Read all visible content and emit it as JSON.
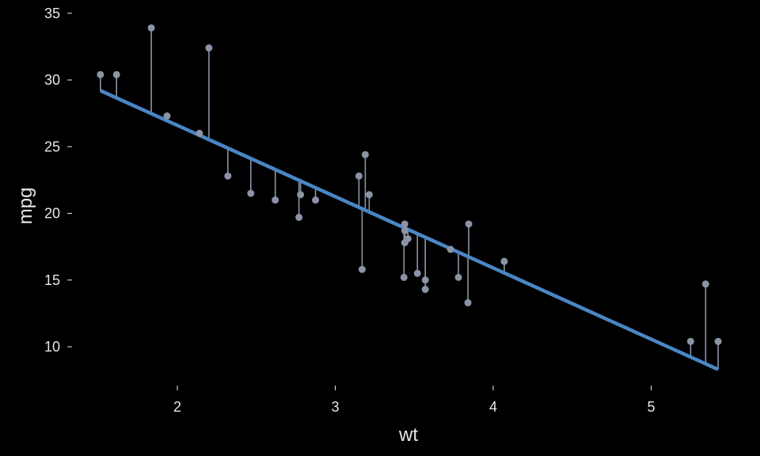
{
  "chart_data": {
    "type": "scatter",
    "title": "",
    "xlabel": "wt",
    "ylabel": "mpg",
    "xlim": [
      1.3,
      5.9
    ],
    "ylim": [
      6.8,
      35.3
    ],
    "x_ticks": [
      2,
      3,
      4,
      5
    ],
    "y_ticks": [
      10,
      15,
      20,
      25,
      30,
      35
    ],
    "grid": false,
    "colors": {
      "background": "#000000",
      "points": "#8a94a6",
      "residual_lines": "#8a94a6",
      "fit_line": "#4a86c5",
      "text": "#e6e6e6"
    },
    "regression": {
      "intercept": 37.285,
      "slope": -5.344,
      "x_range": [
        1.513,
        5.424
      ]
    },
    "points": [
      {
        "x": 2.62,
        "y": 21.0
      },
      {
        "x": 2.875,
        "y": 21.0
      },
      {
        "x": 2.32,
        "y": 22.8
      },
      {
        "x": 3.215,
        "y": 21.4
      },
      {
        "x": 3.44,
        "y": 18.7
      },
      {
        "x": 3.46,
        "y": 18.1
      },
      {
        "x": 3.57,
        "y": 14.3
      },
      {
        "x": 3.19,
        "y": 24.4
      },
      {
        "x": 3.15,
        "y": 22.8
      },
      {
        "x": 3.44,
        "y": 19.2
      },
      {
        "x": 3.44,
        "y": 17.8
      },
      {
        "x": 4.07,
        "y": 16.4
      },
      {
        "x": 3.73,
        "y": 17.3
      },
      {
        "x": 3.78,
        "y": 15.2
      },
      {
        "x": 5.25,
        "y": 10.4
      },
      {
        "x": 5.424,
        "y": 10.4
      },
      {
        "x": 5.345,
        "y": 14.7
      },
      {
        "x": 2.2,
        "y": 32.4
      },
      {
        "x": 1.615,
        "y": 30.4
      },
      {
        "x": 1.835,
        "y": 33.9
      },
      {
        "x": 2.465,
        "y": 21.5
      },
      {
        "x": 3.52,
        "y": 15.5
      },
      {
        "x": 3.435,
        "y": 15.2
      },
      {
        "x": 3.84,
        "y": 13.3
      },
      {
        "x": 3.845,
        "y": 19.2
      },
      {
        "x": 1.935,
        "y": 27.3
      },
      {
        "x": 2.14,
        "y": 26.0
      },
      {
        "x": 1.513,
        "y": 30.4
      },
      {
        "x": 3.17,
        "y": 15.8
      },
      {
        "x": 2.77,
        "y": 19.7
      },
      {
        "x": 3.57,
        "y": 15.0
      },
      {
        "x": 2.78,
        "y": 21.4
      }
    ]
  }
}
